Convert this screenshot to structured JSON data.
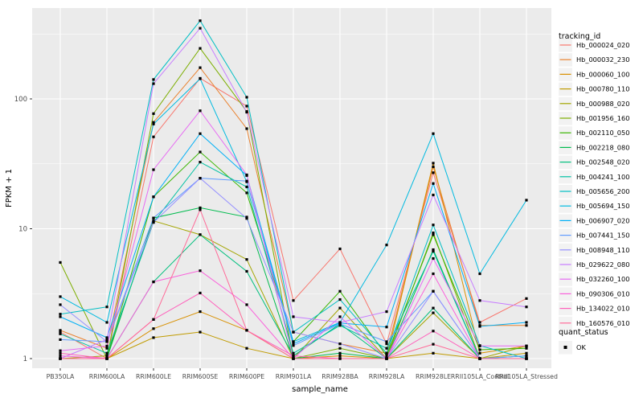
{
  "style": {
    "panel_bg": "#EBEBEB",
    "grid_major": "#FFFFFF",
    "grid_minor": "#F7F7F7",
    "tick_label_color": "#4D4D4D",
    "axis_title_color": "#000000",
    "legend_key_bg": "#F2F2F2",
    "point_color": "#000000"
  },
  "chart_data": {
    "type": "line",
    "xlabel": "sample_name",
    "ylabel": "FPKM + 1",
    "y_scale": "log10",
    "y_ticks": [
      1,
      10,
      100
    ],
    "y_tick_labels": [
      "1",
      "10",
      "100"
    ],
    "y_minor_ticks": [
      3.162,
      31.62,
      316.2
    ],
    "ylim": [
      0.93,
      500
    ],
    "grid": true,
    "legend_position": "right",
    "point_shape": "square",
    "categories": [
      "PB350LA",
      "RRIM600LA",
      "RRIM600LE",
      "RRIM600SE",
      "RRIM600PE",
      "RRIM901LA",
      "RRIM928BA",
      "RRIM928LA",
      "RRIM928LE",
      "RRII105LA_Control",
      "RRII105LA_Stressed"
    ],
    "series": [
      {
        "name": "Hb_000024_020",
        "color": "#F8766D",
        "values": [
          1.6,
          1.0,
          51,
          144,
          88,
          2.8,
          7.0,
          1.3,
          27,
          1.9,
          2.9
        ]
      },
      {
        "name": "Hb_000032_230",
        "color": "#EA8331",
        "values": [
          1.65,
          1.2,
          66,
          174,
          59,
          1.6,
          1.3,
          1.1,
          30,
          1.8,
          1.8
        ]
      },
      {
        "name": "Hb_000060_100",
        "color": "#D89000",
        "values": [
          1.0,
          1.0,
          1.7,
          2.3,
          1.65,
          1.0,
          1.05,
          1.0,
          32,
          1.1,
          1.25
        ]
      },
      {
        "name": "Hb_000780_110",
        "color": "#C09B00",
        "values": [
          1.0,
          1.0,
          1.45,
          1.6,
          1.2,
          1.0,
          1.0,
          1.0,
          1.1,
          1.0,
          1.1
        ]
      },
      {
        "name": "Hb_000988_020",
        "color": "#A3A500",
        "values": [
          1.0,
          1.05,
          11.5,
          9.0,
          5.8,
          1.0,
          2.45,
          1.0,
          2.25,
          1.0,
          1.25
        ]
      },
      {
        "name": "Hb_001956_160",
        "color": "#7CAE00",
        "values": [
          5.5,
          1.0,
          77,
          245,
          80,
          1.0,
          1.2,
          1.0,
          9.3,
          1.0,
          1.0
        ]
      },
      {
        "name": "Hb_002110_050",
        "color": "#39B600",
        "values": [
          1.0,
          1.0,
          17.6,
          39,
          18.9,
          1.35,
          3.3,
          1.05,
          9.0,
          1.17,
          1.2
        ]
      },
      {
        "name": "Hb_002218_080",
        "color": "#00BB4E",
        "values": [
          1.0,
          1.0,
          12.1,
          14.5,
          12.3,
          1.0,
          1.1,
          1.0,
          6.9,
          1.0,
          1.05
        ]
      },
      {
        "name": "Hb_002548_020",
        "color": "#00BF7D",
        "values": [
          1.0,
          1.0,
          3.9,
          9.0,
          4.7,
          1.05,
          1.85,
          1.0,
          2.45,
          1.0,
          1.0
        ]
      },
      {
        "name": "Hb_004241_100",
        "color": "#00C1A3",
        "values": [
          1.55,
          1.1,
          11.2,
          32.6,
          21,
          1.1,
          1.8,
          1.2,
          6.7,
          1.0,
          1.0
        ]
      },
      {
        "name": "Hb_005656_200",
        "color": "#00BFC4",
        "values": [
          2.2,
          2.5,
          141,
          400,
          103,
          1.6,
          2.85,
          1.1,
          10.7,
          1.26,
          1.0
        ]
      },
      {
        "name": "Hb_005694_150",
        "color": "#00BAE0",
        "values": [
          3.0,
          1.9,
          64,
          143,
          23,
          1.35,
          1.9,
          7.5,
          54,
          4.5,
          16.6
        ]
      },
      {
        "name": "Hb_006907_020",
        "color": "#00B0F6",
        "values": [
          2.1,
          1.45,
          17.6,
          54,
          25.7,
          1.3,
          1.88,
          1.75,
          22.3,
          1.77,
          1.9
        ]
      },
      {
        "name": "Hb_007441_150",
        "color": "#619CFF",
        "values": [
          1.4,
          1.35,
          12.1,
          24.5,
          23.3,
          1.26,
          1.85,
          1.35,
          3.3,
          1.0,
          1.05
        ]
      },
      {
        "name": "Hb_008948_110",
        "color": "#9590FF",
        "values": [
          2.6,
          1.35,
          11.2,
          24.5,
          12.0,
          1.6,
          1.3,
          1.0,
          3.3,
          1.0,
          1.0
        ]
      },
      {
        "name": "Hb_029622_080",
        "color": "#C77CFF",
        "values": [
          1.0,
          1.4,
          131,
          350,
          79,
          2.1,
          1.9,
          2.3,
          18.2,
          2.8,
          2.5
        ]
      },
      {
        "name": "Hb_032260_100",
        "color": "#E76BF3",
        "values": [
          1.15,
          1.25,
          28.5,
          81,
          26,
          1.0,
          2.1,
          1.0,
          5.9,
          1.25,
          1.25
        ]
      },
      {
        "name": "Hb_090306_010",
        "color": "#FA62DB",
        "values": [
          1.05,
          1.0,
          3.9,
          4.75,
          2.6,
          1.0,
          1.0,
          1.0,
          4.5,
          1.0,
          1.0
        ]
      },
      {
        "name": "Hb_134022_010",
        "color": "#FF62BC",
        "values": [
          1.1,
          1.0,
          2.0,
          3.2,
          1.65,
          1.05,
          1.0,
          1.0,
          1.63,
          1.0,
          1.0
        ]
      },
      {
        "name": "Hb_160576_010",
        "color": "#FF6A98",
        "values": [
          1.0,
          1.0,
          2.0,
          14,
          1.65,
          1.0,
          1.0,
          1.0,
          1.29,
          1.0,
          1.0
        ]
      }
    ],
    "legend": {
      "color_title": "tracking_id",
      "shape_title": "quant_status",
      "shape_items": [
        {
          "label": "OK",
          "shape": "square"
        }
      ]
    }
  }
}
